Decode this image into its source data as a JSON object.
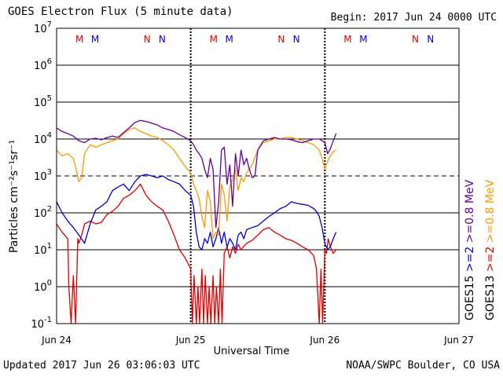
{
  "header": {
    "title": "GOES Electron Flux (5 minute data)",
    "begin": "Begin: 2017 Jun 24 0000 UTC"
  },
  "footer": {
    "updated": "Updated 2017 Jun 26 03:06:03 UTC",
    "credit": "NOAA/SWPC Boulder, CO USA"
  },
  "chart_data": {
    "type": "line",
    "title": "GOES Electron Flux (5 minute data)",
    "xlabel": "Universal Time",
    "ylabel": "Particles cm⁻²s⁻¹sr⁻¹",
    "yscale": "log",
    "ylim": [
      0.1,
      10000000
    ],
    "xlim_hours": [
      0,
      72
    ],
    "x_ticks": [
      {
        "hour": 0,
        "label": "Jun 24"
      },
      {
        "hour": 24,
        "label": "Jun 25"
      },
      {
        "hour": 48,
        "label": "Jun 26"
      },
      {
        "hour": 72,
        "label": "Jun 27"
      }
    ],
    "y_ticks": [
      {
        "value": 0.1,
        "base": "10",
        "exp": "-1"
      },
      {
        "value": 1,
        "base": "10",
        "exp": "0"
      },
      {
        "value": 10,
        "base": "10",
        "exp": "1"
      },
      {
        "value": 100,
        "base": "10",
        "exp": "2"
      },
      {
        "value": 1000,
        "base": "10",
        "exp": "3"
      },
      {
        "value": 10000,
        "base": "10",
        "exp": "4"
      },
      {
        "value": 100000,
        "base": "10",
        "exp": "5"
      },
      {
        "value": 1000000,
        "base": "10",
        "exp": "6"
      },
      {
        "value": 10000000,
        "base": "10",
        "exp": "7"
      }
    ],
    "threshold_value": 1000,
    "grid": true,
    "legend_placement": "right",
    "legend": [
      {
        "label": ">=0.8 MeV",
        "color": "#ff9900"
      },
      {
        "label": ">=0.8 MeV",
        "color": "#660099"
      },
      {
        "label": ">=2",
        "color": "#dd0000"
      },
      {
        "label": ">=2",
        "color": "#0000cc"
      },
      {
        "label": "GOES13",
        "color": "#000000"
      },
      {
        "label": "GOES15",
        "color": "#000000"
      }
    ],
    "markers": [
      {
        "hour": 4.1,
        "label": "M",
        "color": "#dd0000"
      },
      {
        "hour": 6.9,
        "label": "M",
        "color": "#0000cc"
      },
      {
        "hour": 16.2,
        "label": "N",
        "color": "#dd0000"
      },
      {
        "hour": 18.9,
        "label": "N",
        "color": "#0000cc"
      },
      {
        "hour": 28.1,
        "label": "M",
        "color": "#dd0000"
      },
      {
        "hour": 30.9,
        "label": "M",
        "color": "#0000cc"
      },
      {
        "hour": 40.2,
        "label": "N",
        "color": "#dd0000"
      },
      {
        "hour": 42.9,
        "label": "N",
        "color": "#0000cc"
      },
      {
        "hour": 52.1,
        "label": "M",
        "color": "#dd0000"
      },
      {
        "hour": 54.9,
        "label": "M",
        "color": "#0000cc"
      },
      {
        "hour": 64.2,
        "label": "N",
        "color": "#dd0000"
      },
      {
        "hour": 66.9,
        "label": "N",
        "color": "#0000cc"
      }
    ],
    "series": [
      {
        "name": ">=0.8 MeV GOES15",
        "color": "#660099",
        "x": [
          0,
          1,
          2,
          3,
          4,
          5,
          6,
          7,
          8,
          9,
          10,
          11,
          12,
          13,
          14,
          15,
          16,
          17,
          18,
          19,
          20,
          21,
          22,
          23,
          24,
          24.5,
          25,
          25.5,
          26,
          26.5,
          27,
          27.5,
          28,
          28.5,
          29,
          29.5,
          30,
          30.5,
          31,
          31.5,
          32,
          32.5,
          33,
          33.5,
          34,
          34.5,
          35,
          35.5,
          36,
          37,
          38,
          39,
          40,
          41,
          42,
          43,
          44,
          45,
          46,
          47,
          47.5,
          48,
          48.5,
          49,
          49.5,
          50
        ],
        "y": [
          20000,
          16000,
          14000,
          12000,
          9000,
          8000,
          10000,
          10500,
          9500,
          11000,
          12000,
          11000,
          15000,
          20000,
          28000,
          32000,
          30000,
          27000,
          24000,
          20000,
          18000,
          16000,
          13000,
          11000,
          9000,
          7000,
          5000,
          4000,
          3000,
          1500,
          900,
          3000,
          1500,
          40,
          200,
          5000,
          6000,
          600,
          2000,
          150,
          4000,
          1000,
          5000,
          2000,
          3000,
          1500,
          900,
          1000,
          5000,
          9000,
          10000,
          11000,
          10000,
          10000,
          9500,
          8500,
          8000,
          9000,
          10000,
          10000,
          9000,
          8000,
          4000,
          5500,
          9000,
          14000
        ]
      },
      {
        "name": ">=0.8 MeV GOES13",
        "color": "#ff9900",
        "x": [
          0,
          1,
          2,
          3,
          3.5,
          4,
          4.5,
          5,
          6,
          7,
          8,
          9,
          10,
          11,
          12,
          13,
          14,
          15,
          16,
          17,
          18,
          19,
          20,
          21,
          22,
          23,
          24,
          24.5,
          25,
          25.5,
          26,
          26.5,
          27,
          27.5,
          28,
          28.5,
          29,
          29.5,
          30,
          30.5,
          31,
          31.5,
          32,
          32.5,
          33,
          33.5,
          34,
          35,
          36,
          37,
          38,
          39,
          40,
          41,
          42,
          43,
          44,
          45,
          46,
          47,
          47.5,
          48,
          48.5,
          49,
          49.5,
          50
        ],
        "y": [
          5000,
          3500,
          4000,
          3000,
          1500,
          700,
          900,
          4000,
          7000,
          6000,
          7000,
          8000,
          9000,
          10000,
          14000,
          18000,
          20000,
          16000,
          14000,
          12000,
          11000,
          9000,
          7000,
          5000,
          3000,
          1800,
          1200,
          600,
          400,
          250,
          80,
          40,
          400,
          200,
          20,
          30,
          25,
          600,
          300,
          60,
          500,
          800,
          1500,
          400,
          900,
          700,
          1200,
          2000,
          5000,
          8000,
          9000,
          10000,
          10000,
          11000,
          11000,
          10000,
          9000,
          8000,
          7000,
          5000,
          3000,
          1500,
          2500,
          3500,
          4500,
          5000
        ]
      },
      {
        "name": ">=2 GOES15",
        "color": "#0000cc",
        "x": [
          0,
          1,
          2,
          3,
          4,
          5,
          6,
          7,
          8,
          9,
          10,
          11,
          12,
          13,
          14,
          15,
          16,
          17,
          18,
          19,
          20,
          21,
          22,
          23,
          24,
          24.5,
          25,
          25.5,
          26,
          26.5,
          27,
          27.5,
          28,
          28.5,
          29,
          29.5,
          30,
          30.5,
          31,
          31.5,
          32,
          32.5,
          33,
          33.5,
          34,
          35,
          36,
          37,
          38,
          39,
          40,
          41,
          42,
          43,
          44,
          45,
          46,
          46.5,
          47,
          47.5,
          48,
          48.5,
          49,
          49.5,
          50
        ],
        "y": [
          200,
          100,
          60,
          40,
          25,
          15,
          50,
          120,
          150,
          200,
          400,
          500,
          600,
          400,
          700,
          1000,
          1100,
          1000,
          900,
          1000,
          800,
          700,
          600,
          400,
          300,
          150,
          30,
          12,
          10,
          20,
          15,
          30,
          12,
          20,
          40,
          15,
          30,
          12,
          20,
          15,
          10,
          25,
          30,
          20,
          35,
          40,
          45,
          60,
          80,
          100,
          130,
          150,
          200,
          180,
          170,
          160,
          130,
          110,
          80,
          40,
          15,
          10,
          12,
          20,
          30
        ]
      },
      {
        "name": ">=2 GOES13",
        "color": "#dd0000",
        "x": [
          0,
          1,
          2,
          2.2,
          2.6,
          3,
          3.4,
          3.8,
          4,
          4.5,
          5,
          6,
          7,
          8,
          9,
          10,
          11,
          12,
          13,
          14,
          15,
          16,
          17,
          18,
          19,
          20,
          21,
          22,
          23,
          24,
          24.3,
          24.6,
          25,
          25.3,
          25.6,
          26,
          26.3,
          26.6,
          27,
          27.3,
          27.6,
          28,
          28.3,
          28.6,
          29,
          29.3,
          29.6,
          30,
          30.5,
          31,
          31.5,
          32,
          32.5,
          33,
          34,
          35,
          36,
          37,
          38,
          39,
          40,
          41,
          42,
          43,
          44,
          45,
          46,
          46.5,
          47,
          47.3,
          47.6,
          48,
          48.3,
          48.6,
          49,
          49.5,
          50
        ],
        "y": [
          50,
          30,
          20,
          1,
          0.1,
          2,
          0.1,
          20,
          15,
          25,
          50,
          60,
          50,
          55,
          90,
          110,
          150,
          250,
          300,
          400,
          600,
          300,
          200,
          150,
          120,
          60,
          25,
          10,
          6,
          3,
          0.1,
          2,
          0.1,
          1,
          0.1,
          3,
          0.1,
          2,
          0.1,
          1,
          0.1,
          2,
          0.1,
          1,
          0.1,
          3,
          0.1,
          8,
          12,
          6,
          12,
          8,
          14,
          10,
          15,
          18,
          25,
          35,
          40,
          30,
          25,
          20,
          18,
          15,
          12,
          10,
          7,
          3,
          0.1,
          3,
          0.1,
          10,
          8,
          20,
          12,
          8,
          10
        ]
      }
    ]
  }
}
